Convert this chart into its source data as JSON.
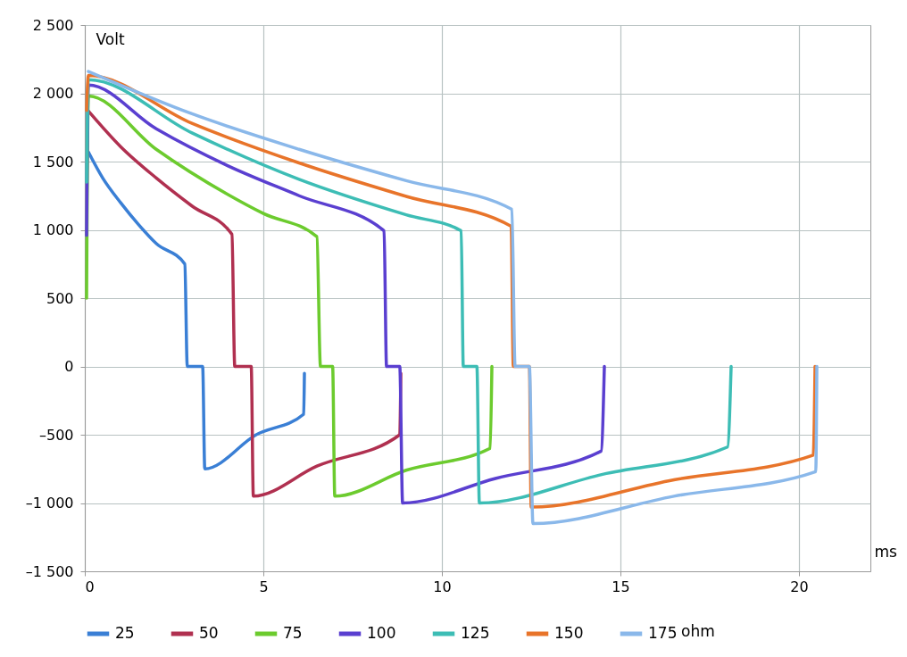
{
  "chart_data": {
    "type": "line",
    "xlabel": "ms",
    "ylabel": "Volt",
    "legend_title": "ohm",
    "legend": "bottom",
    "grid": true,
    "marker": "none",
    "line_style": "solid",
    "xlim": [
      0,
      22
    ],
    "xticks": [
      0,
      5,
      10,
      15,
      20
    ],
    "ylim": [
      -1500,
      2500
    ],
    "yticks": [
      {
        "value": -1500,
        "label": "–1 500"
      },
      {
        "value": -1000,
        "label": "–1 000"
      },
      {
        "value": -500,
        "label": "–500"
      },
      0,
      500,
      {
        "value": 1000,
        "label": "1 000"
      },
      {
        "value": 1500,
        "label": "1 500"
      },
      {
        "value": 2000,
        "label": "2 000"
      },
      {
        "value": 2500,
        "label": "2 500"
      }
    ],
    "series": [
      {
        "name": "25",
        "color": "#3a7fd5",
        "x": [
          0.1,
          0.5,
          1,
          1.5,
          2,
          2.8,
          2.87,
          3.3,
          3.36,
          4.8,
          6.13,
          6.15
        ],
        "values": [
          1570,
          1380,
          1200,
          1040,
          900,
          750,
          0,
          0,
          -750,
          -500,
          -350,
          -50
        ]
      },
      {
        "name": "50",
        "color": "#b03050",
        "x": [
          0.1,
          1,
          2,
          3,
          4.12,
          4.2,
          4.66,
          4.72,
          6.5,
          8.82,
          8.85
        ],
        "values": [
          1870,
          1610,
          1380,
          1175,
          967,
          0,
          0,
          -950,
          -730,
          -500,
          -50
        ]
      },
      {
        "name": "75",
        "color": "#6ccb2e",
        "x": [
          0.05,
          0.1,
          2,
          4,
          5,
          6.5,
          6.6,
          6.94,
          7,
          9,
          11.35,
          11.4
        ],
        "values": [
          500,
          1980,
          1590,
          1260,
          1120,
          950,
          0,
          0,
          -950,
          -760,
          -600,
          0
        ]
      },
      {
        "name": "100",
        "color": "#5a3fd0",
        "x": [
          0.05,
          0.1,
          2,
          4,
          6,
          8.38,
          8.45,
          8.82,
          8.9,
          11.5,
          14.46,
          14.55
        ],
        "values": [
          960,
          2060,
          1740,
          1470,
          1250,
          993,
          0,
          0,
          -1000,
          -820,
          -620,
          0
        ]
      },
      {
        "name": "125",
        "color": "#3dbdb5",
        "x": [
          0.05,
          0.1,
          3,
          6,
          9,
          10.54,
          10.6,
          10.98,
          11.05,
          14.5,
          18,
          18.1
        ],
        "values": [
          1350,
          2100,
          1710,
          1370,
          1110,
          993,
          0,
          0,
          -1000,
          -790,
          -590,
          0
        ]
      },
      {
        "name": "150",
        "color": "#e8742a",
        "x": [
          0.05,
          0.1,
          3,
          6,
          9,
          11.94,
          12,
          12.45,
          12.5,
          16.5,
          20.4,
          20.45
        ],
        "values": [
          1875,
          2130,
          1780,
          1490,
          1245,
          1026,
          0,
          0,
          -1030,
          -830,
          -650,
          0
        ]
      },
      {
        "name": "175",
        "color": "#8ab8ea",
        "x": [
          0.1,
          3,
          6,
          9,
          11.96,
          12.05,
          12.45,
          12.55,
          16.5,
          20.47,
          20.5
        ],
        "values": [
          2160,
          1850,
          1590,
          1360,
          1150,
          0,
          0,
          -1150,
          -950,
          -770,
          0
        ]
      }
    ]
  }
}
